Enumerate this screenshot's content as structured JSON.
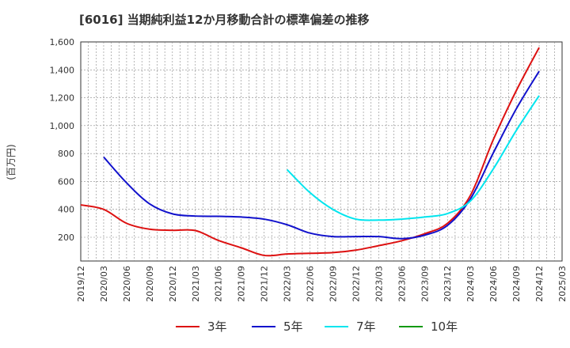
{
  "chart_data": {
    "type": "line",
    "title": "[6016]  当期純利益12か月移動合計の標準偏差の推移",
    "ylabel": "(百万円)",
    "xlabel": "",
    "ylim": [
      30,
      1600
    ],
    "yticks": [
      200,
      400,
      600,
      800,
      1000,
      1200,
      1400,
      1600
    ],
    "ytick_labels": [
      "200",
      "400",
      "600",
      "800",
      "1,000",
      "1,200",
      "1,400",
      "1,600"
    ],
    "x_ticks": [
      "2019/12",
      "2020/03",
      "2020/06",
      "2020/09",
      "2020/12",
      "2021/03",
      "2021/06",
      "2021/09",
      "2021/12",
      "2022/03",
      "2022/06",
      "2022/09",
      "2022/12",
      "2023/03",
      "2023/06",
      "2023/09",
      "2023/12",
      "2024/03",
      "2024/06",
      "2024/09",
      "2024/12",
      "2025/03"
    ],
    "grid": true,
    "legend_position": "bottom",
    "series": [
      {
        "name": "3年",
        "color": "#dd1111",
        "points": [
          [
            "2019/12",
            432
          ],
          [
            "2020/03",
            400
          ],
          [
            "2020/06",
            300
          ],
          [
            "2020/09",
            258
          ],
          [
            "2020/12",
            250
          ],
          [
            "2021/03",
            248
          ],
          [
            "2021/06",
            178
          ],
          [
            "2021/09",
            125
          ],
          [
            "2021/12",
            70
          ],
          [
            "2022/03",
            80
          ],
          [
            "2022/06",
            85
          ],
          [
            "2022/09",
            90
          ],
          [
            "2022/12",
            108
          ],
          [
            "2023/03",
            140
          ],
          [
            "2023/06",
            175
          ],
          [
            "2023/09",
            225
          ],
          [
            "2023/12",
            300
          ],
          [
            "2024/03",
            500
          ],
          [
            "2024/06",
            900
          ],
          [
            "2024/09",
            1250
          ],
          [
            "2024/12",
            1560
          ]
        ]
      },
      {
        "name": "5年",
        "color": "#1111cc",
        "points": [
          [
            "2020/03",
            775
          ],
          [
            "2020/06",
            590
          ],
          [
            "2020/09",
            440
          ],
          [
            "2020/12",
            368
          ],
          [
            "2021/03",
            352
          ],
          [
            "2021/06",
            350
          ],
          [
            "2021/09",
            345
          ],
          [
            "2021/12",
            330
          ],
          [
            "2022/03",
            290
          ],
          [
            "2022/06",
            230
          ],
          [
            "2022/09",
            205
          ],
          [
            "2022/12",
            205
          ],
          [
            "2023/03",
            205
          ],
          [
            "2023/06",
            190
          ],
          [
            "2023/09",
            215
          ],
          [
            "2023/12",
            285
          ],
          [
            "2024/03",
            475
          ],
          [
            "2024/06",
            805
          ],
          [
            "2024/09",
            1120
          ],
          [
            "2024/12",
            1390
          ]
        ]
      },
      {
        "name": "7年",
        "color": "#00e5ee",
        "points": [
          [
            "2022/03",
            685
          ],
          [
            "2022/06",
            520
          ],
          [
            "2022/09",
            400
          ],
          [
            "2022/12",
            330
          ],
          [
            "2023/03",
            323
          ],
          [
            "2023/06",
            330
          ],
          [
            "2023/09",
            345
          ],
          [
            "2023/12",
            370
          ],
          [
            "2024/03",
            460
          ],
          [
            "2024/06",
            690
          ],
          [
            "2024/09",
            965
          ],
          [
            "2024/12",
            1215
          ]
        ]
      },
      {
        "name": "10年",
        "color": "#119911",
        "points": []
      }
    ]
  }
}
